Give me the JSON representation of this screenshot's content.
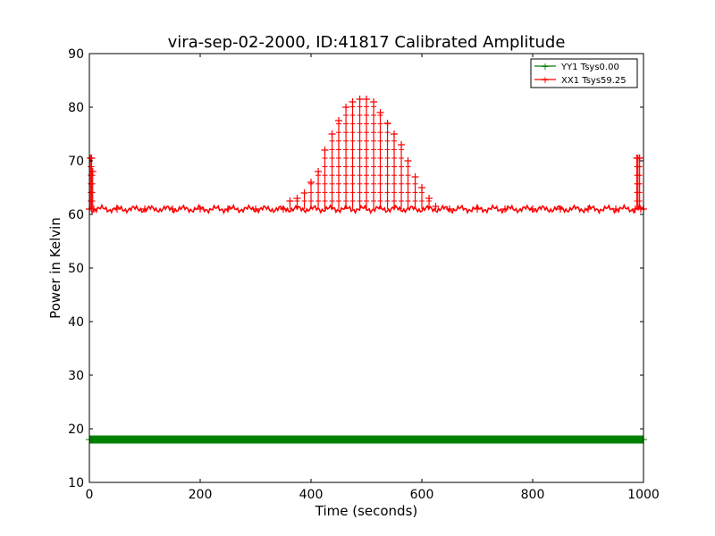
{
  "chart_data": {
    "type": "line",
    "title": "vira-sep-02-2000, ID:41817 Calibrated Amplitude",
    "xlabel": "Time (seconds)",
    "ylabel": "Power in Kelvin",
    "xlim": [
      0,
      1000
    ],
    "ylim": [
      10,
      90
    ],
    "xticks": [
      0,
      200,
      400,
      600,
      800,
      1000
    ],
    "yticks": [
      10,
      20,
      30,
      40,
      50,
      60,
      70,
      80,
      90
    ],
    "grid": false,
    "legend_position": "top-right",
    "marker": "+",
    "series": [
      {
        "name": "YY1 Tsys0.00",
        "color": "#008000",
        "x": [
          0,
          50,
          100,
          150,
          200,
          250,
          300,
          350,
          400,
          450,
          500,
          550,
          600,
          650,
          700,
          750,
          800,
          850,
          900,
          950,
          1000
        ],
        "y": [
          18,
          18,
          18,
          18,
          18,
          18,
          18,
          18,
          18,
          18,
          18,
          18,
          18,
          18,
          18,
          18,
          18,
          18,
          18,
          18,
          18
        ]
      },
      {
        "name": "XX1 Tsys59.25",
        "color": "#ff0000",
        "baseline": 61,
        "x": [
          0,
          2,
          4,
          6,
          8,
          50,
          100,
          150,
          200,
          250,
          300,
          350,
          362,
          375,
          388,
          400,
          413,
          425,
          438,
          450,
          463,
          475,
          488,
          500,
          513,
          525,
          538,
          550,
          563,
          575,
          588,
          600,
          613,
          625,
          650,
          700,
          750,
          800,
          850,
          900,
          950,
          985,
          988,
          990,
          993,
          995,
          1000
        ],
        "y": [
          61,
          70.5,
          70.5,
          68,
          61,
          61,
          61,
          61,
          61,
          61,
          61,
          61,
          62.5,
          63,
          64,
          66,
          68,
          72,
          75,
          77.5,
          80,
          81,
          81.5,
          81.5,
          81,
          79,
          77,
          75,
          73,
          70,
          67,
          65,
          63,
          61.5,
          61,
          61,
          61,
          61,
          61,
          61,
          61,
          61,
          70.5,
          70.5,
          70.5,
          61,
          61
        ]
      }
    ]
  }
}
